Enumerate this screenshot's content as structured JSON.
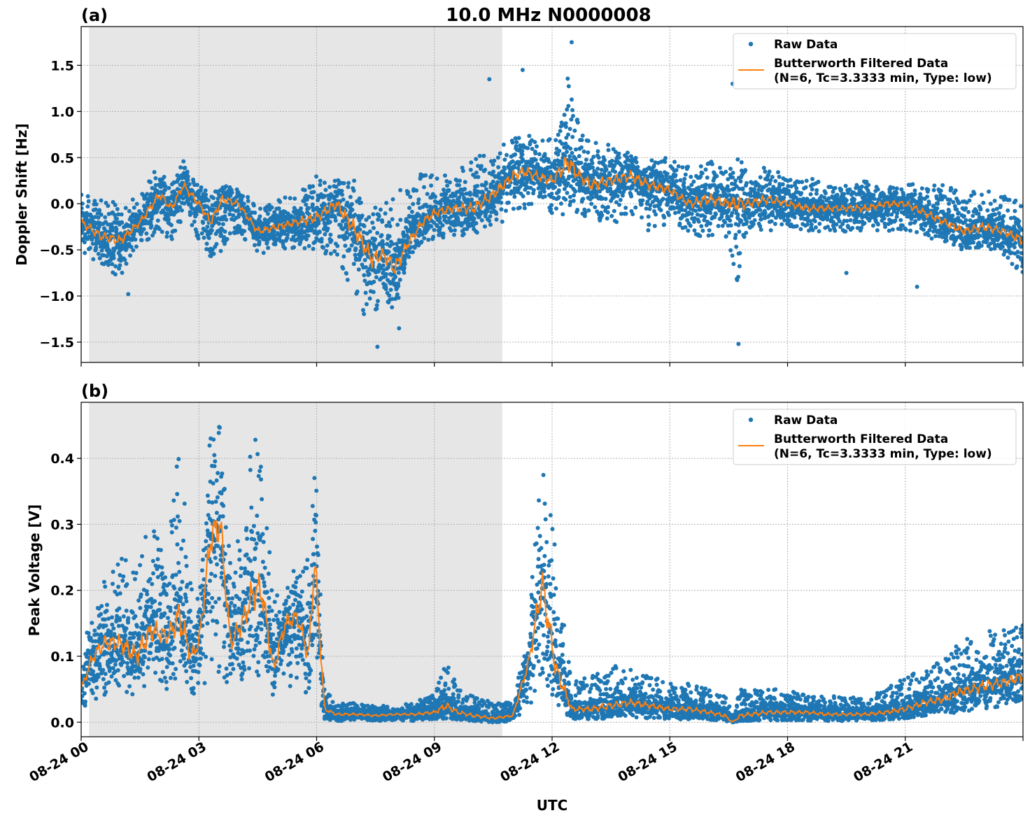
{
  "figure": {
    "title": "10.0 MHz N0000008",
    "xlabel": "UTC",
    "x_tick_labels": [
      "08-24 00",
      "08-24 03",
      "08-24 06",
      "08-24 09",
      "08-24 12",
      "08-24 15",
      "08-24 18",
      "08-24 21"
    ]
  },
  "colors": {
    "raw": "#1f77b4",
    "filtered": "#ff7f0e",
    "night_shade": "#e6e6e6",
    "grid": "#b0b0b0"
  },
  "chart_data": [
    {
      "type": "scatter",
      "panel_label": "(a)",
      "title": "10.0 MHz N0000008",
      "xlabel": "",
      "ylabel": "Doppler Shift [Hz]",
      "x_unit": "hours UTC since 08-24 00:00",
      "xlim": [
        0,
        24
      ],
      "ylim": [
        -1.72,
        1.92
      ],
      "y_ticks": [
        1.5,
        1.0,
        0.5,
        0.0,
        -0.5,
        -1.0,
        -1.5
      ],
      "y_tick_labels": [
        "1.5",
        "1.0",
        "0.5",
        "0.0",
        "−0.5",
        "−1.0",
        "−1.5"
      ],
      "shaded_interval": [
        0.2,
        10.73
      ],
      "grid": true,
      "legend": {
        "placement": "top-right",
        "entries": [
          "Raw Data",
          "Butterworth Filtered Data",
          "(N=6, Tc=3.3333 min, Type: low)"
        ]
      },
      "series": [
        {
          "name": "Butterworth Filtered Data (N=6, Tc=3.3333 min, Type: low)",
          "kind": "line",
          "x": [
            0,
            0.5,
            1,
            1.5,
            2,
            2.3,
            2.6,
            3,
            3.3,
            3.6,
            4,
            4.5,
            5,
            5.5,
            6,
            6.5,
            7,
            7.4,
            7.7,
            8,
            8.3,
            8.7,
            9,
            9.5,
            10,
            10.5,
            11,
            11.3,
            11.6,
            12,
            12.4,
            12.7,
            13,
            13.5,
            14,
            14.5,
            15,
            15.5,
            16,
            16.5,
            17,
            17.5,
            18,
            18.5,
            19,
            19.5,
            20,
            20.5,
            21,
            21.5,
            22,
            22.5,
            23,
            23.5,
            24
          ],
          "y": [
            -0.2,
            -0.35,
            -0.4,
            -0.2,
            0.1,
            -0.05,
            0.2,
            0.0,
            -0.2,
            0.05,
            0.0,
            -0.3,
            -0.25,
            -0.2,
            -0.15,
            0.0,
            -0.3,
            -0.6,
            -0.55,
            -0.7,
            -0.45,
            -0.2,
            -0.1,
            -0.05,
            -0.05,
            0.1,
            0.3,
            0.35,
            0.3,
            0.25,
            0.45,
            0.3,
            0.2,
            0.25,
            0.3,
            0.2,
            0.15,
            0.0,
            0.05,
            0.0,
            0.0,
            0.05,
            0.0,
            -0.05,
            -0.05,
            -0.05,
            -0.05,
            0.0,
            0.0,
            -0.1,
            -0.2,
            -0.3,
            -0.25,
            -0.3,
            -0.4
          ]
        },
        {
          "name": "Raw Data",
          "kind": "scatter",
          "x": [
            0,
            0.5,
            1,
            1.2,
            1.5,
            2,
            2.3,
            2.6,
            3,
            3.3,
            3.6,
            4,
            4.5,
            5,
            5.5,
            6,
            6.5,
            7,
            7.4,
            7.7,
            8,
            8.3,
            8.7,
            9,
            9.5,
            10,
            10.5,
            11,
            11.3,
            11.6,
            12,
            12.4,
            12.7,
            13,
            13.5,
            14,
            14.5,
            15,
            15.5,
            16,
            16.5,
            16.7,
            17,
            17.5,
            18,
            18.5,
            19,
            19.5,
            20,
            20.5,
            21,
            21.5,
            22,
            22.5,
            23,
            23.5,
            24
          ],
          "y_upper": [
            0.1,
            0.05,
            0.0,
            0.05,
            0.1,
            0.45,
            0.2,
            0.5,
            0.2,
            0.1,
            0.2,
            0.15,
            0.0,
            0.05,
            0.1,
            0.3,
            0.3,
            0.3,
            0.0,
            0.0,
            0.1,
            0.25,
            0.35,
            0.3,
            0.35,
            0.5,
            0.6,
            0.7,
            0.8,
            0.7,
            0.7,
            1.4,
            0.8,
            0.7,
            0.65,
            0.6,
            0.5,
            0.5,
            0.4,
            0.5,
            0.4,
            0.5,
            0.4,
            0.4,
            0.3,
            0.3,
            0.2,
            0.2,
            0.25,
            0.2,
            0.25,
            0.2,
            0.2,
            0.15,
            0.15,
            0.1,
            0.0
          ],
          "y_lower": [
            -0.5,
            -0.7,
            -0.8,
            -0.6,
            -0.45,
            -0.3,
            -0.4,
            -0.15,
            -0.4,
            -0.6,
            -0.5,
            -0.3,
            -0.55,
            -0.5,
            -0.5,
            -0.5,
            -0.6,
            -1.1,
            -1.3,
            -1.0,
            -1.3,
            -0.6,
            -0.4,
            -0.4,
            -0.35,
            -0.35,
            -0.3,
            -0.15,
            -0.05,
            -0.05,
            -0.1,
            -0.15,
            -0.1,
            -0.2,
            -0.2,
            -0.2,
            -0.3,
            -0.2,
            -0.3,
            -0.4,
            -0.4,
            -0.9,
            -0.3,
            -0.3,
            -0.25,
            -0.3,
            -0.3,
            -0.35,
            -0.3,
            -0.3,
            -0.3,
            -0.35,
            -0.45,
            -0.5,
            -0.5,
            -0.55,
            -0.8
          ],
          "outliers": [
            [
              12.5,
              1.75
            ],
            [
              16.75,
              -1.52
            ],
            [
              7.55,
              -1.55
            ],
            [
              8.1,
              -1.35
            ],
            [
              1.2,
              -0.98
            ],
            [
              16.6,
              1.3
            ],
            [
              10.4,
              1.35
            ],
            [
              11.25,
              1.45
            ],
            [
              21.3,
              -0.9
            ],
            [
              19.5,
              -0.75
            ]
          ]
        }
      ]
    },
    {
      "type": "scatter",
      "panel_label": "(b)",
      "title": "",
      "xlabel": "UTC",
      "ylabel": "Peak Voltage [V]",
      "x_unit": "hours UTC since 08-24 00:00",
      "xlim": [
        0,
        24
      ],
      "ylim": [
        -0.022,
        0.485
      ],
      "y_ticks": [
        0.4,
        0.3,
        0.2,
        0.1,
        0.0
      ],
      "y_tick_labels": [
        "0.4",
        "0.3",
        "0.2",
        "0.1",
        "0.0"
      ],
      "shaded_interval": [
        0.2,
        10.73
      ],
      "grid": true,
      "legend": {
        "placement": "top-right",
        "entries": [
          "Raw Data",
          "Butterworth Filtered Data",
          "(N=6, Tc=3.3333 min, Type: low)"
        ]
      },
      "series": [
        {
          "name": "Butterworth Filtered Data (N=6, Tc=3.3333 min, Type: low)",
          "kind": "line",
          "x": [
            0,
            0.3,
            0.6,
            1,
            1.4,
            1.8,
            2.2,
            2.5,
            2.8,
            3.0,
            3.3,
            3.55,
            3.8,
            4.1,
            4.4,
            4.6,
            4.9,
            5.2,
            5.5,
            5.8,
            5.95,
            6.2,
            6.5,
            7,
            7.5,
            8,
            8.5,
            9,
            9.3,
            9.6,
            10,
            10.5,
            11,
            11.4,
            11.75,
            12.1,
            12.5,
            13,
            13.5,
            14,
            14.5,
            15,
            15.5,
            16,
            16.4,
            16.6,
            16.8,
            17.5,
            18,
            18.5,
            19,
            19.5,
            20,
            20.5,
            21,
            21.5,
            22,
            22.3,
            22.7,
            23,
            23.5,
            24
          ],
          "y": [
            0.05,
            0.1,
            0.12,
            0.12,
            0.1,
            0.14,
            0.13,
            0.16,
            0.1,
            0.12,
            0.28,
            0.3,
            0.12,
            0.15,
            0.2,
            0.2,
            0.08,
            0.15,
            0.16,
            0.1,
            0.25,
            0.02,
            0.012,
            0.012,
            0.01,
            0.012,
            0.012,
            0.015,
            0.025,
            0.015,
            0.01,
            0.006,
            0.01,
            0.09,
            0.21,
            0.08,
            0.02,
            0.02,
            0.025,
            0.03,
            0.025,
            0.02,
            0.02,
            0.015,
            0.01,
            0.0,
            0.01,
            0.015,
            0.015,
            0.015,
            0.012,
            0.012,
            0.012,
            0.015,
            0.02,
            0.03,
            0.035,
            0.045,
            0.05,
            0.055,
            0.06,
            0.07
          ]
        },
        {
          "name": "Raw Data",
          "kind": "scatter",
          "x": [
            0,
            0.3,
            0.6,
            1,
            1.4,
            1.8,
            2.2,
            2.5,
            2.8,
            3.0,
            3.3,
            3.55,
            3.8,
            4.1,
            4.4,
            4.6,
            4.9,
            5.2,
            5.5,
            5.8,
            5.95,
            6.2,
            6.5,
            7,
            7.5,
            8,
            8.5,
            9,
            9.3,
            9.6,
            10,
            10.5,
            11,
            11.4,
            11.75,
            12.1,
            12.5,
            13,
            13.5,
            14,
            14.5,
            15,
            15.5,
            16,
            16.4,
            16.6,
            16.8,
            17.5,
            18,
            18.5,
            19,
            19.5,
            20,
            20.5,
            21,
            21.5,
            22,
            22.3,
            22.7,
            23,
            23.5,
            24
          ],
          "y_upper": [
            0.1,
            0.18,
            0.22,
            0.25,
            0.26,
            0.3,
            0.25,
            0.45,
            0.2,
            0.22,
            0.45,
            0.45,
            0.25,
            0.3,
            0.46,
            0.42,
            0.2,
            0.25,
            0.23,
            0.25,
            0.43,
            0.05,
            0.03,
            0.03,
            0.025,
            0.025,
            0.03,
            0.045,
            0.1,
            0.05,
            0.04,
            0.03,
            0.03,
            0.15,
            0.45,
            0.26,
            0.06,
            0.07,
            0.09,
            0.08,
            0.07,
            0.06,
            0.06,
            0.05,
            0.045,
            0.01,
            0.05,
            0.05,
            0.05,
            0.04,
            0.04,
            0.04,
            0.04,
            0.05,
            0.07,
            0.08,
            0.1,
            0.12,
            0.13,
            0.14,
            0.14,
            0.16
          ],
          "y_lower": [
            0.02,
            0.03,
            0.04,
            0.05,
            0.04,
            0.05,
            0.05,
            0.06,
            0.04,
            0.05,
            0.06,
            0.07,
            0.05,
            0.06,
            0.07,
            0.07,
            0.03,
            0.05,
            0.06,
            0.04,
            0.06,
            0.005,
            0.002,
            0.002,
            0.002,
            0.002,
            0.002,
            0.004,
            0.006,
            0.004,
            0.002,
            0.0,
            0.002,
            0.02,
            0.06,
            0.02,
            0.005,
            0.005,
            0.006,
            0.008,
            0.006,
            0.005,
            0.004,
            0.004,
            0.002,
            0.0,
            0.002,
            0.003,
            0.003,
            0.002,
            0.002,
            0.002,
            0.003,
            0.004,
            0.006,
            0.01,
            0.012,
            0.015,
            0.018,
            0.02,
            0.025,
            0.03
          ]
        }
      ]
    }
  ]
}
